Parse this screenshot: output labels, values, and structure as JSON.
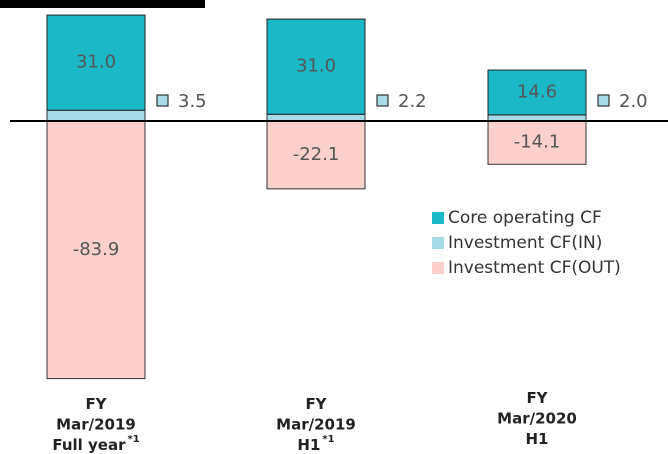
{
  "chart_data": {
    "type": "stacked-bar",
    "categories": [
      [
        "FY",
        "Mar/2019",
        "Full year"
      ],
      [
        "FY",
        "Mar/2019",
        "H1"
      ],
      [
        "FY",
        "Mar/2020",
        "H1"
      ]
    ],
    "category_notes": [
      "*1",
      "*1",
      null
    ],
    "series": [
      {
        "name": "Core operating CF",
        "color": "#1bb8c8",
        "values": [
          31.0,
          31.0,
          14.6
        ],
        "value_labels": [
          "31.0",
          "31.0",
          "14.6"
        ]
      },
      {
        "name": "Investment CF(IN)",
        "color": "#a8dbe8",
        "values": [
          3.5,
          2.2,
          2.0
        ],
        "value_labels": [
          "3.5",
          "2.2",
          "2.0"
        ]
      },
      {
        "name": "Investment CF(OUT)",
        "color": "#f9d0cb",
        "values": [
          -83.9,
          -22.1,
          -14.1
        ]
      }
    ]
  }
}
